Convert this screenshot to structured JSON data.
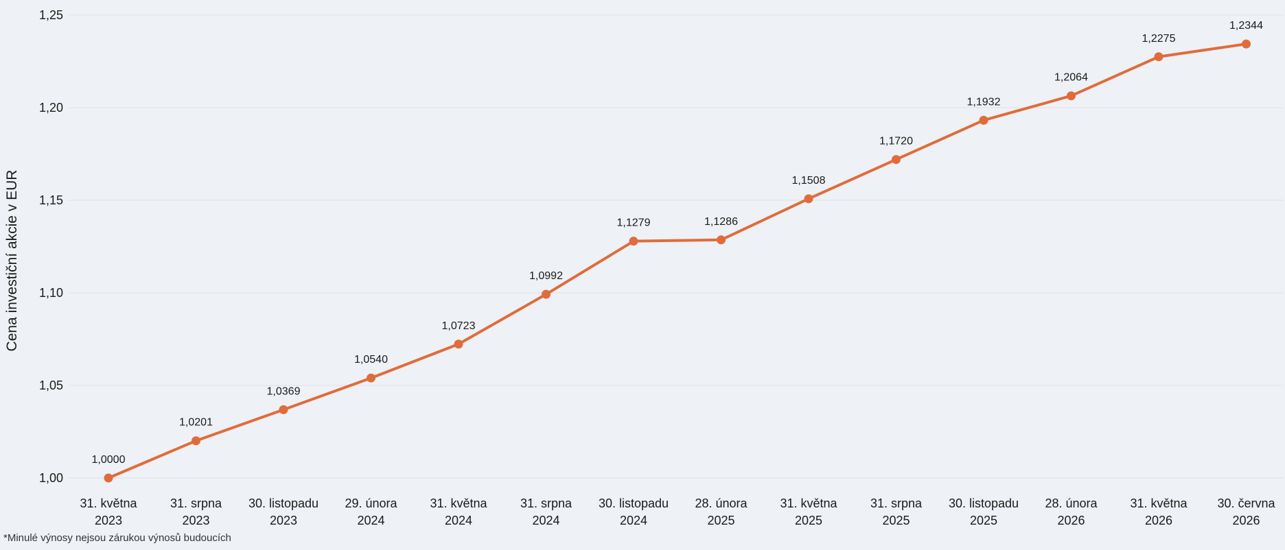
{
  "colors": {
    "background": "#eef1f5",
    "series": "#e06c3c",
    "grid": "#dde1e7",
    "text": "#1a1a1a"
  },
  "chart_data": {
    "type": "line",
    "title": "",
    "xlabel": "",
    "ylabel": "Cena investiční akcie v EUR",
    "ylim": [
      1.0,
      1.25
    ],
    "yticks": [
      "1,00",
      "1,05",
      "1,10",
      "1,15",
      "1,20",
      "1,25"
    ],
    "ytick_values": [
      1.0,
      1.05,
      1.1,
      1.15,
      1.2,
      1.25
    ],
    "grid": true,
    "legend": "none",
    "categories": [
      [
        "31. května",
        "2023"
      ],
      [
        "31. srpna",
        "2023"
      ],
      [
        "30. listopadu",
        "2023"
      ],
      [
        "29. února",
        "2024"
      ],
      [
        "31. května",
        "2024"
      ],
      [
        "31. srpna",
        "2024"
      ],
      [
        "30. listopadu",
        "2024"
      ],
      [
        "28. února",
        "2025"
      ],
      [
        "31. května",
        "2025"
      ],
      [
        "31. srpna",
        "2025"
      ],
      [
        "30. listopadu",
        "2025"
      ],
      [
        "28. února",
        "2026"
      ],
      [
        "31. května",
        "2026"
      ],
      [
        "30. června",
        "2026"
      ]
    ],
    "values": [
      1.0,
      1.0201,
      1.0369,
      1.054,
      1.0723,
      1.0992,
      1.1279,
      1.1286,
      1.1508,
      1.172,
      1.1932,
      1.2064,
      1.2275,
      1.2344
    ],
    "data_labels": [
      "1,0000",
      "1,0201",
      "1,0369",
      "1,0540",
      "1,0723",
      "1,0992",
      "1,1279",
      "1,1286",
      "1,1508",
      "1,1720",
      "1,1932",
      "1,2064",
      "1,2275",
      "1,2344"
    ]
  },
  "footnote": "*Minulé výnosy nejsou zárukou výnosů budoucích"
}
